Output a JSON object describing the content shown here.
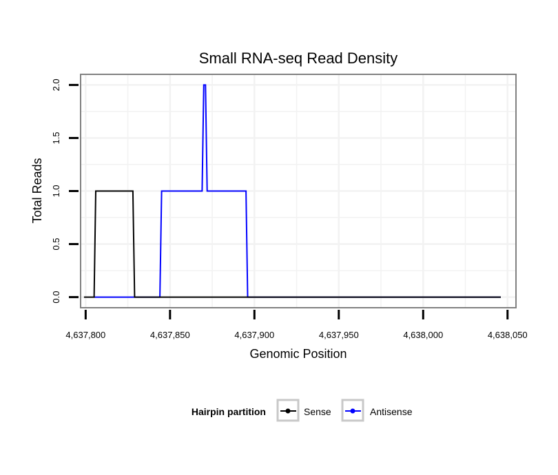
{
  "chart_data": {
    "type": "line",
    "title": "Small RNA-seq Read Density",
    "xlabel": "Genomic Position",
    "ylabel": "Total Reads",
    "xlim": [
      4637797,
      4638055
    ],
    "ylim": [
      -0.1,
      2.1
    ],
    "x_ticks": [
      4637800,
      4637850,
      4637900,
      4637950,
      4638000,
      4638050
    ],
    "x_tick_labels": [
      "4,637,800",
      "4,637,850",
      "4,637,900",
      "4,637,950",
      "4,638,000",
      "4,638,050"
    ],
    "y_ticks": [
      0,
      0.5,
      1,
      1.5,
      2
    ],
    "y_tick_labels": [
      "0.0",
      "0.5",
      "1.0",
      "1.5",
      "2.0"
    ],
    "grid": true,
    "legend": {
      "title": "Hairpin partition",
      "position": "bottom",
      "entries": [
        "Sense",
        "Antisense"
      ]
    },
    "series": [
      {
        "name": "Sense",
        "color": "#000000",
        "x": [
          4637799,
          4637805,
          4637806,
          4637828,
          4637829,
          4638046
        ],
        "y": [
          0,
          0,
          1,
          1,
          0,
          0
        ]
      },
      {
        "name": "Antisense",
        "color": "#0000ff",
        "x": [
          4637805,
          4637844,
          4637845,
          4637869,
          4637870,
          4637871,
          4637872,
          4637895,
          4637896,
          4638046
        ],
        "y": [
          0,
          0,
          1,
          1,
          2,
          2,
          1,
          1,
          0,
          0
        ]
      }
    ]
  }
}
